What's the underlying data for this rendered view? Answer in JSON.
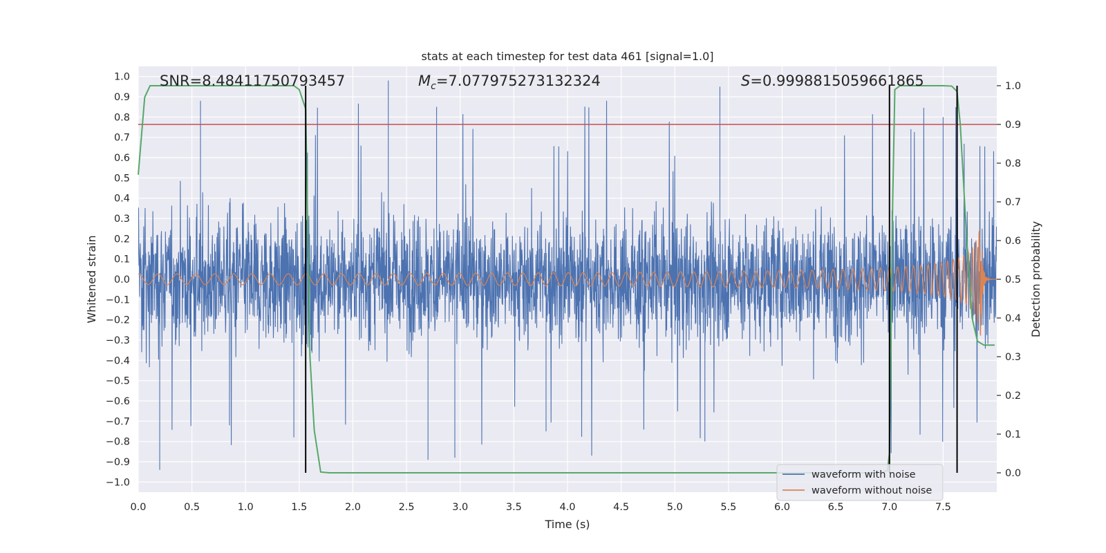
{
  "chart_data": {
    "type": "line",
    "title": "stats at each timestep for test data 461 [signal=1.0]",
    "xlabel": "Time (s)",
    "ylabel": "Whitened strain",
    "ylabel_right": "Detection probability",
    "xlim": [
      0.0,
      8.0
    ],
    "ylim": [
      -1.05,
      1.05
    ],
    "ylim_right": [
      -0.05,
      1.05
    ],
    "xticks": [
      "0.0",
      "0.5",
      "1.0",
      "1.5",
      "2.0",
      "2.5",
      "3.0",
      "3.5",
      "4.0",
      "4.5",
      "5.0",
      "5.5",
      "6.0",
      "6.5",
      "7.0",
      "7.5"
    ],
    "yticks": [
      "1.0",
      "0.9",
      "0.8",
      "0.7",
      "0.6",
      "0.5",
      "0.4",
      "0.3",
      "0.2",
      "0.1",
      "0.0",
      "−0.1",
      "−0.2",
      "−0.3",
      "−0.4",
      "−0.5",
      "−0.6",
      "−0.7",
      "−0.8",
      "−0.9",
      "−1.0"
    ],
    "yticks_right": [
      "1.0",
      "0.9",
      "0.8",
      "0.7",
      "0.6",
      "0.5",
      "0.4",
      "0.3",
      "0.2",
      "0.1",
      "0.0"
    ],
    "annotations": {
      "snr": "SNR=8.48411750793457",
      "mc_symbol": "M",
      "mc_sub": "c",
      "mc_value": "=7.077975273132324",
      "s_symbol": "S",
      "s_value": "=0.9998815059661865"
    },
    "threshold": {
      "value": 0.9,
      "axis": "right",
      "color": "#c44e52"
    },
    "vlines": [
      1.56,
      7.0,
      7.63
    ],
    "series": [
      {
        "name": "waveform with noise",
        "color": "#4c72b0",
        "kind": "noise",
        "t_end": 8.0,
        "typical_amplitude": 0.4,
        "peaks": [
          0.88,
          0.98,
          0.85,
          0.95,
          -0.94,
          -0.89
        ]
      },
      {
        "name": "waveform without noise",
        "color": "#dd8452",
        "kind": "chirp",
        "t_merger": 7.85,
        "amp_start": 0.012,
        "amp_peak": 0.31
      },
      {
        "name": "detection probability",
        "color": "#55a868",
        "axis": "right",
        "t": [
          0.0,
          0.06,
          0.11,
          0.5,
          1.0,
          1.45,
          1.5,
          1.56,
          1.6,
          1.64,
          1.7,
          1.78,
          2.5,
          6.9,
          6.98,
          7.0,
          7.03,
          7.05,
          7.1,
          7.5,
          7.58,
          7.63,
          7.66,
          7.72,
          7.77,
          7.82,
          7.88,
          7.93,
          7.98
        ],
        "p": [
          0.77,
          0.97,
          1.0,
          1.0,
          1.0,
          1.0,
          0.99,
          0.94,
          0.3,
          0.11,
          0.002,
          0.0,
          0.0,
          0.0,
          0.005,
          0.05,
          0.7,
          0.99,
          1.0,
          1.0,
          0.999,
          0.985,
          0.9,
          0.6,
          0.4,
          0.34,
          0.33,
          0.33,
          0.33
        ]
      }
    ],
    "legend": {
      "location": "lower-right",
      "entries": [
        "waveform with noise",
        "waveform without noise"
      ]
    }
  }
}
